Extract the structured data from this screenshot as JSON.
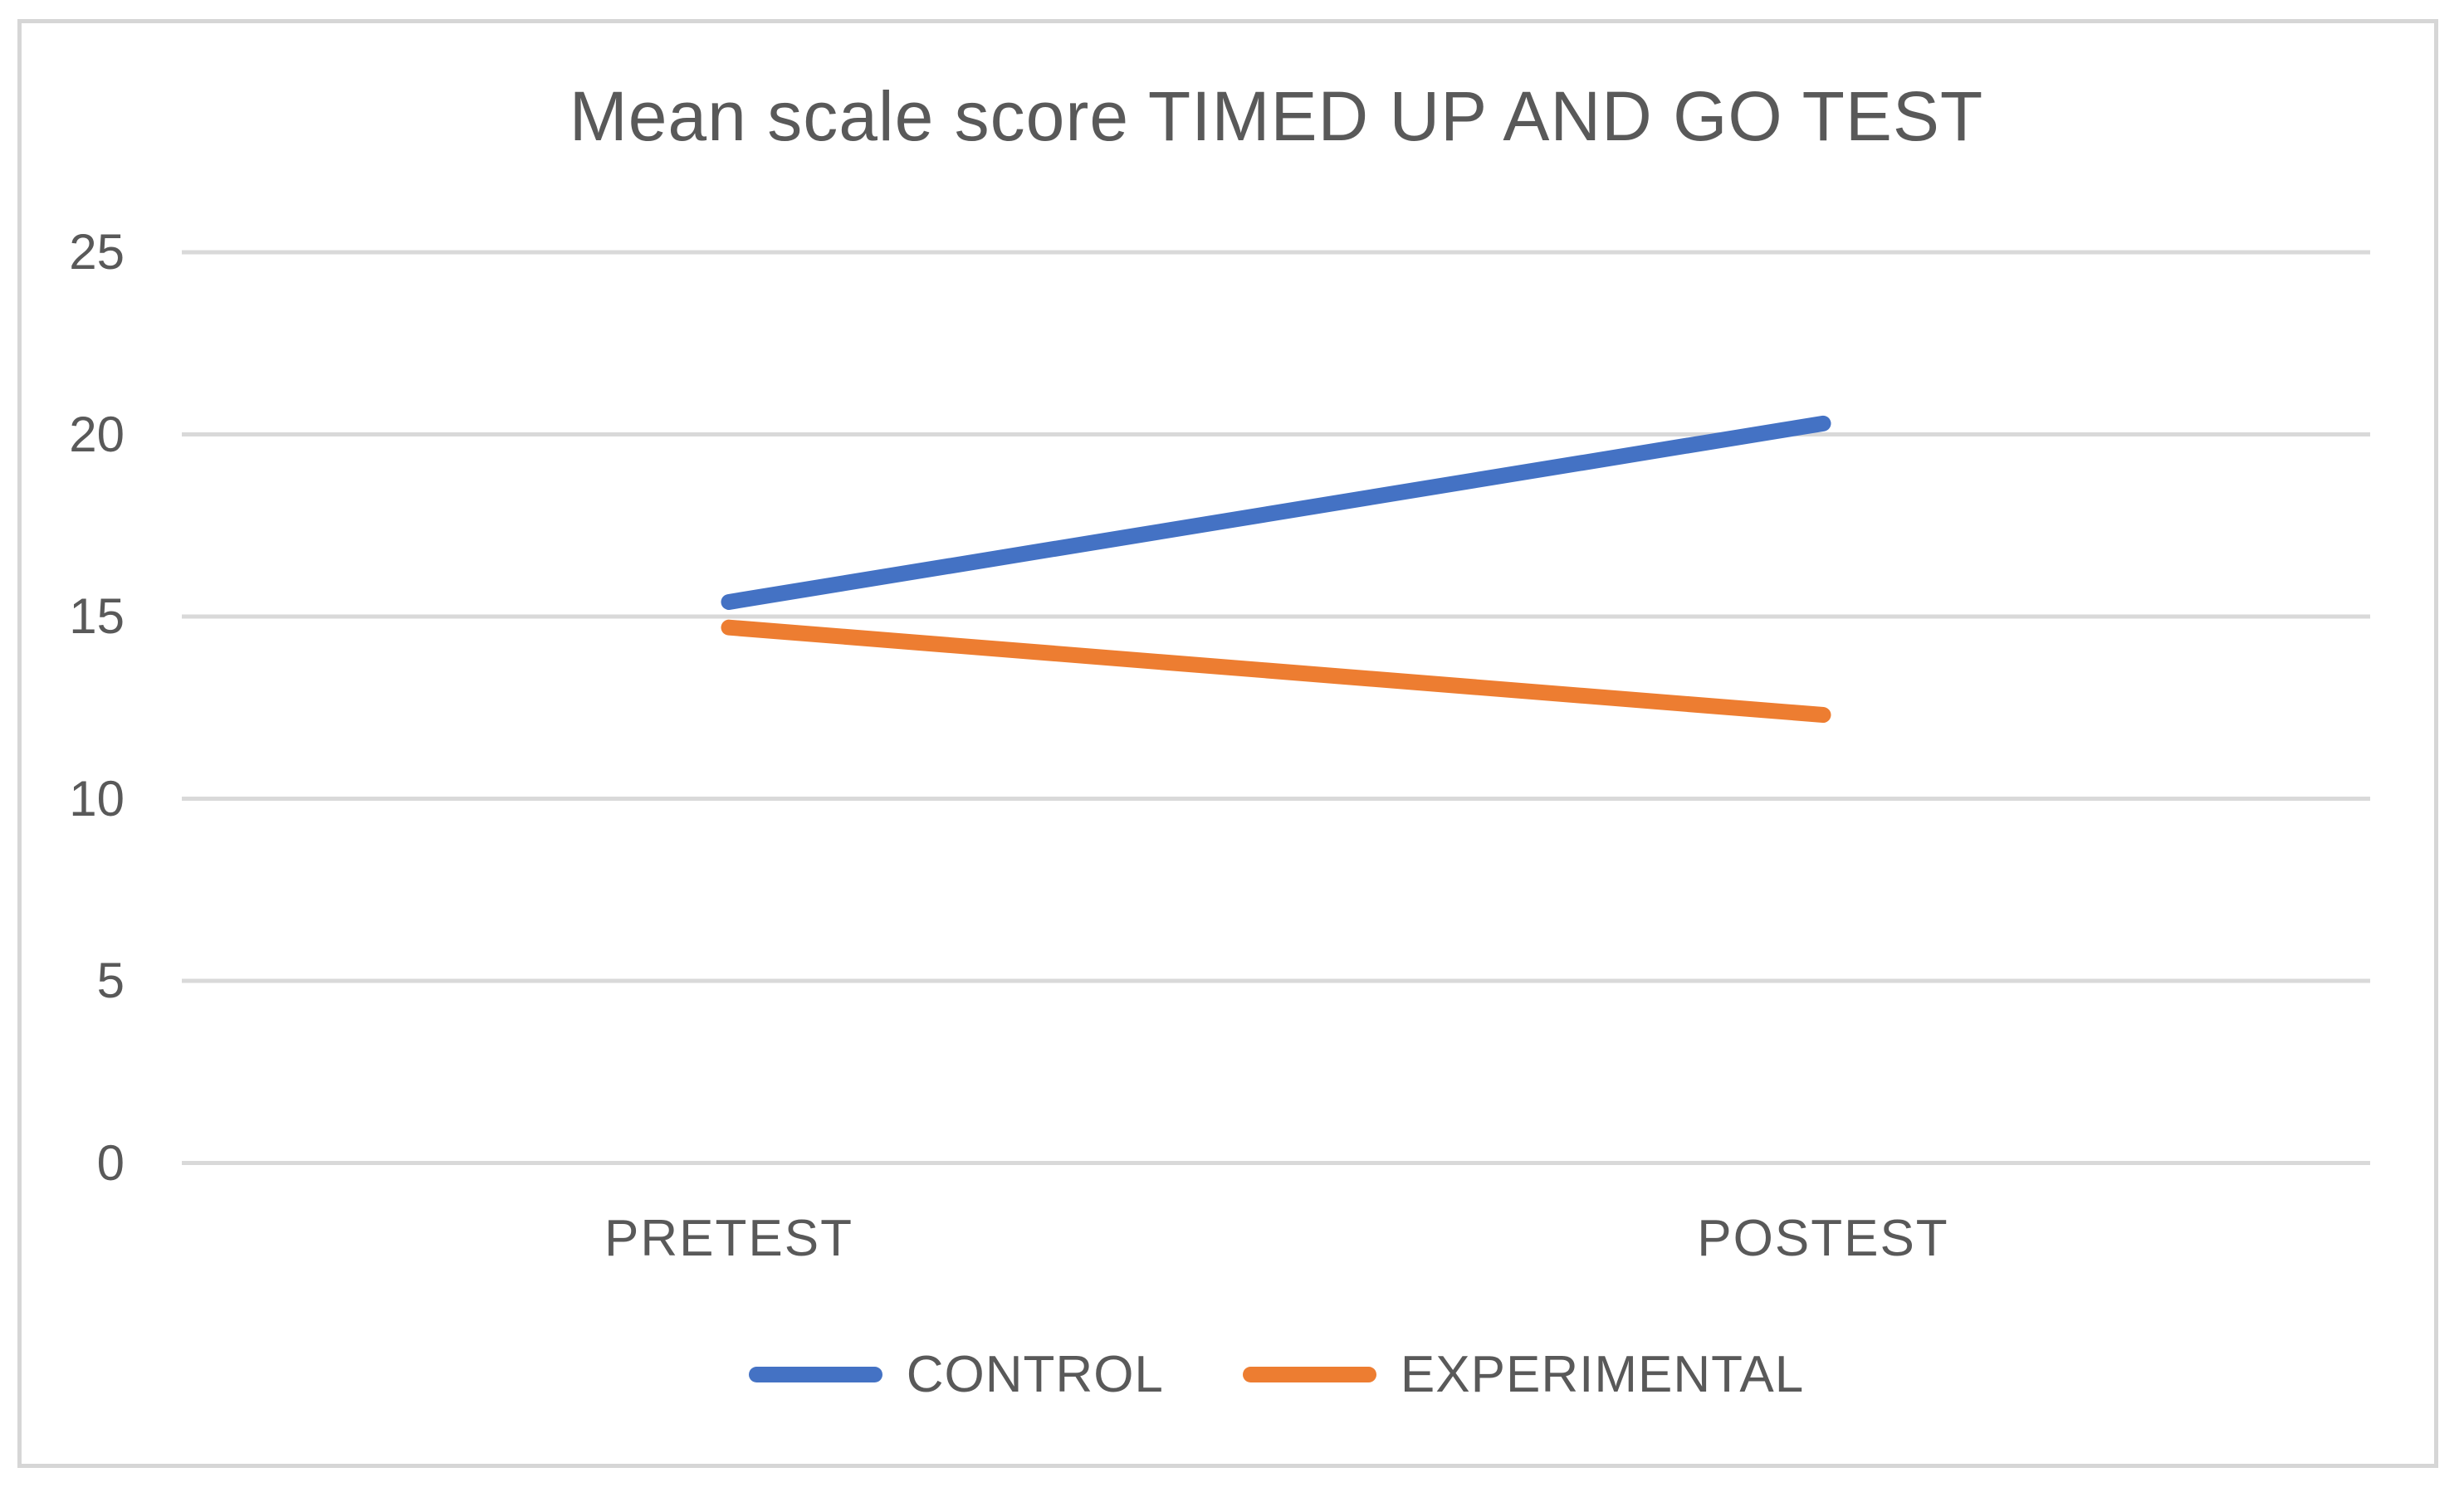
{
  "page": {
    "background": "#ffffff",
    "frame_border_color": "#d6d6d6"
  },
  "colors": {
    "text": "#595959",
    "gridline": "#d9d9d9"
  },
  "chart_data": {
    "type": "line",
    "title": "Mean scale score TIMED UP AND GO TEST",
    "categories": [
      "PRETEST",
      "POSTEST"
    ],
    "series": [
      {
        "name": "CONTROL",
        "color": "#4472c4",
        "values": [
          15.4,
          20.3
        ]
      },
      {
        "name": "EXPERIMENTAL",
        "color": "#ed7d31",
        "values": [
          14.7,
          12.3
        ]
      }
    ],
    "ylim": [
      0,
      25
    ],
    "yticks": [
      0,
      5,
      10,
      15,
      20,
      25
    ],
    "xlabel": "",
    "ylabel": "",
    "grid": true,
    "legend_position": "bottom"
  }
}
